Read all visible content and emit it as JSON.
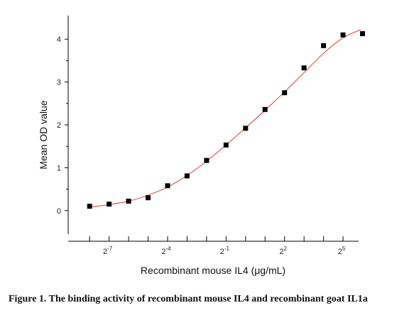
{
  "caption": "Figure 1. The binding activity of recombinant mouse IL4 and recombinant goat IL1a",
  "chart_data": {
    "type": "scatter",
    "title": "",
    "xlabel": "Recombinant mouse IL4 (μg/mL)",
    "ylabel": "Mean OD value",
    "x_scale": "log2",
    "xlim_log2": [
      -9.1,
      5.8
    ],
    "ylim": [
      -0.55,
      4.55
    ],
    "x_ticks": [
      {
        "base": "2",
        "exp": "-7",
        "log2": -7
      },
      {
        "base": "2",
        "exp": "-4",
        "log2": -4
      },
      {
        "base": "2",
        "exp": "-1",
        "log2": -1
      },
      {
        "base": "2",
        "exp": "2",
        "log2": 2
      },
      {
        "base": "2",
        "exp": "5",
        "log2": 5
      }
    ],
    "y_ticks": [
      {
        "label": "0",
        "value": 0
      },
      {
        "label": "1",
        "value": 1
      },
      {
        "label": "2",
        "value": 2
      },
      {
        "label": "3",
        "value": 3
      },
      {
        "label": "4",
        "value": 4
      }
    ],
    "grid": false,
    "series": [
      {
        "marker": "square",
        "color": "#000000",
        "points": [
          {
            "x_log2": -8.0,
            "y": 0.1
          },
          {
            "x_log2": -7.0,
            "y": 0.15
          },
          {
            "x_log2": -6.0,
            "y": 0.22
          },
          {
            "x_log2": -5.0,
            "y": 0.3
          },
          {
            "x_log2": -4.0,
            "y": 0.58
          },
          {
            "x_log2": -3.0,
            "y": 0.81
          },
          {
            "x_log2": -2.0,
            "y": 1.17
          },
          {
            "x_log2": -1.0,
            "y": 1.53
          },
          {
            "x_log2": 0.0,
            "y": 1.92
          },
          {
            "x_log2": 1.0,
            "y": 2.36
          },
          {
            "x_log2": 2.0,
            "y": 2.75
          },
          {
            "x_log2": 3.0,
            "y": 3.33
          },
          {
            "x_log2": 4.0,
            "y": 3.85
          },
          {
            "x_log2": 5.0,
            "y": 4.1
          },
          {
            "x_log2": 6.0,
            "y": 4.13
          }
        ]
      },
      {
        "type": "line",
        "color": "#e05a5a",
        "points": [
          {
            "x_log2": -8.0,
            "y": 0.08
          },
          {
            "x_log2": -7.0,
            "y": 0.14
          },
          {
            "x_log2": -6.0,
            "y": 0.22
          },
          {
            "x_log2": -5.0,
            "y": 0.36
          },
          {
            "x_log2": -4.0,
            "y": 0.55
          },
          {
            "x_log2": -3.0,
            "y": 0.82
          },
          {
            "x_log2": -2.0,
            "y": 1.15
          },
          {
            "x_log2": -1.0,
            "y": 1.53
          },
          {
            "x_log2": 0.0,
            "y": 1.93
          },
          {
            "x_log2": 1.0,
            "y": 2.34
          },
          {
            "x_log2": 2.0,
            "y": 2.77
          },
          {
            "x_log2": 3.0,
            "y": 3.22
          },
          {
            "x_log2": 4.0,
            "y": 3.67
          },
          {
            "x_log2": 5.0,
            "y": 4.03
          },
          {
            "x_log2": 5.9,
            "y": 4.22
          }
        ]
      }
    ]
  }
}
